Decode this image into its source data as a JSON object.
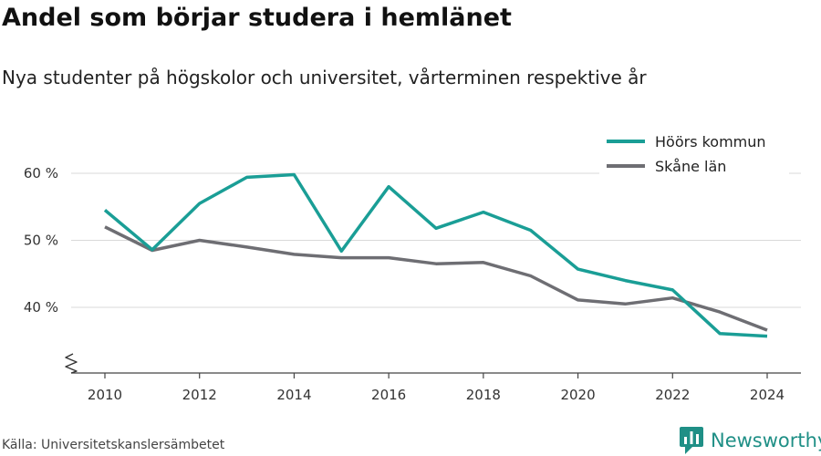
{
  "title": "Andel som börjar studera i hemlänet",
  "subtitle": "Nya studenter på högskolor och universitet, vårterminen respektive år",
  "source": "Källa: Universitetskanslersämbetet",
  "brand": {
    "name": "Newsworthy",
    "color": "#1f8f86"
  },
  "chart_data": {
    "type": "line",
    "title": "Andel som börjar studera i hemlänet",
    "subtitle": "Nya studenter på högskolor och universitet, vårterminen respektive år",
    "x": [
      2010,
      2011,
      2012,
      2013,
      2014,
      2015,
      2016,
      2017,
      2018,
      2019,
      2020,
      2021,
      2022,
      2023,
      2024
    ],
    "x_ticks": [
      2010,
      2012,
      2014,
      2016,
      2018,
      2020,
      2022,
      2024
    ],
    "x_tick_labels": [
      "2010",
      "2012",
      "2014",
      "2016",
      "2018",
      "2020",
      "2022",
      "2024"
    ],
    "y_ticks": [
      40,
      50,
      60
    ],
    "y_tick_labels": [
      "40 %",
      "50 %",
      "60 %"
    ],
    "xlim": [
      2009.75,
      2024.7
    ],
    "ylim": [
      30,
      60
    ],
    "axis_break": true,
    "grid": "horizontal",
    "legend_position": "top-right",
    "series": [
      {
        "name": "Höörs kommun",
        "color": "#1a9e96",
        "values": [
          54.5,
          48.6,
          55.5,
          59.4,
          59.8,
          48.4,
          58.0,
          51.8,
          54.2,
          51.5,
          45.7,
          44.0,
          42.6,
          36.1,
          35.7
        ]
      },
      {
        "name": "Skåne län",
        "color": "#6e6e73",
        "values": [
          52.0,
          48.5,
          50.0,
          49.0,
          47.9,
          47.4,
          47.4,
          46.5,
          46.7,
          44.7,
          41.1,
          40.5,
          41.4,
          39.3,
          36.6
        ]
      }
    ]
  }
}
